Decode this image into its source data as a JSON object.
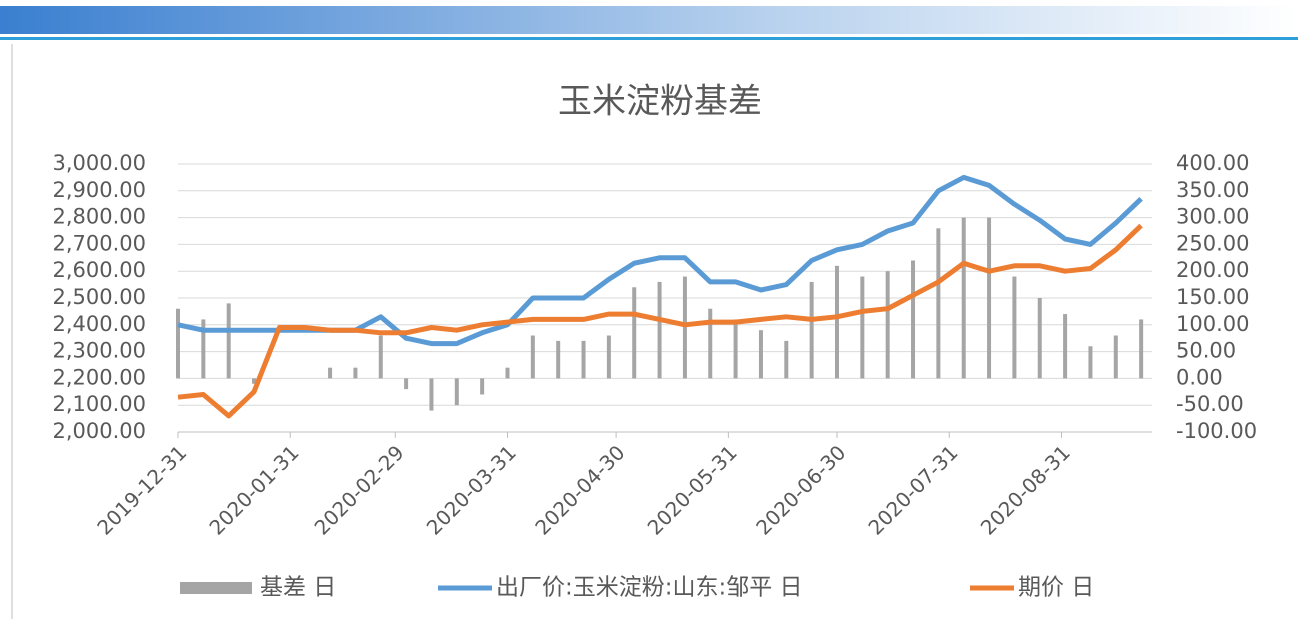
{
  "chart_data": {
    "type": "combo",
    "title": "玉米淀粉基差",
    "x": [
      "2019-12-31",
      "2020-01-07",
      "2020-01-14",
      "2020-01-21",
      "2020-01-28",
      "2020-02-04",
      "2020-02-11",
      "2020-02-18",
      "2020-02-25",
      "2020-03-03",
      "2020-03-10",
      "2020-03-17",
      "2020-03-24",
      "2020-03-31",
      "2020-04-07",
      "2020-04-14",
      "2020-04-21",
      "2020-04-28",
      "2020-05-05",
      "2020-05-12",
      "2020-05-19",
      "2020-05-26",
      "2020-06-02",
      "2020-06-09",
      "2020-06-16",
      "2020-06-23",
      "2020-06-30",
      "2020-07-07",
      "2020-07-14",
      "2020-07-21",
      "2020-07-28",
      "2020-08-04",
      "2020-08-11",
      "2020-08-18",
      "2020-08-25",
      "2020-09-01",
      "2020-09-08",
      "2020-09-15",
      "2020-09-22"
    ],
    "xlim": [
      "2019-12-31",
      "2020-09-25"
    ],
    "xticks": [
      "2019-12-31",
      "2020-01-31",
      "2020-02-29",
      "2020-03-31",
      "2020-04-30",
      "2020-05-31",
      "2020-06-30",
      "2020-07-31",
      "2020-08-31"
    ],
    "series": [
      {
        "name": "基差 日",
        "type": "bar",
        "axis": "y2",
        "color": "#a5a5a5",
        "values": [
          130,
          110,
          140,
          -10,
          0,
          0,
          20,
          20,
          80,
          -20,
          -60,
          -50,
          -30,
          20,
          80,
          70,
          70,
          80,
          170,
          180,
          190,
          130,
          110,
          90,
          70,
          180,
          210,
          190,
          200,
          220,
          280,
          300,
          300,
          190,
          150,
          120,
          60,
          80,
          110
        ]
      },
      {
        "name": "出厂价:玉米淀粉:山东:邹平 日",
        "type": "line",
        "color": "#5b9bd5",
        "values": [
          2400,
          2380,
          2380,
          2380,
          2380,
          2380,
          2380,
          2380,
          2430,
          2350,
          2330,
          2330,
          2370,
          2400,
          2500,
          2500,
          2500,
          2570,
          2630,
          2650,
          2650,
          2560,
          2560,
          2530,
          2550,
          2640,
          2680,
          2700,
          2750,
          2780,
          2900,
          2950,
          2920,
          2850,
          2790,
          2720,
          2700,
          2780,
          2870
        ]
      },
      {
        "name": "期价 日",
        "type": "line",
        "color": "#ed7d31",
        "values": [
          2130,
          2140,
          2060,
          2150,
          2390,
          2390,
          2380,
          2380,
          2370,
          2370,
          2390,
          2380,
          2400,
          2410,
          2420,
          2420,
          2420,
          2440,
          2440,
          2420,
          2400,
          2410,
          2410,
          2420,
          2430,
          2420,
          2430,
          2450,
          2460,
          2510,
          2560,
          2630,
          2600,
          2620,
          2620,
          2600,
          2610,
          2680,
          2770
        ]
      }
    ],
    "ylim": [
      2000,
      3000
    ],
    "yticks": [
      {
        "value": 2000,
        "label": "2,000.00"
      },
      {
        "value": 2100,
        "label": "2,100.00"
      },
      {
        "value": 2200,
        "label": "2,200.00"
      },
      {
        "value": 2300,
        "label": "2,300.00"
      },
      {
        "value": 2400,
        "label": "2,400.00"
      },
      {
        "value": 2500,
        "label": "2,500.00"
      },
      {
        "value": 2600,
        "label": "2,600.00"
      },
      {
        "value": 2700,
        "label": "2,700.00"
      },
      {
        "value": 2800,
        "label": "2,800.00"
      },
      {
        "value": 2900,
        "label": "2,900.00"
      },
      {
        "value": 3000,
        "label": "3,000.00"
      }
    ],
    "y2lim": [
      -100,
      400
    ],
    "y2ticks": [
      {
        "value": -100,
        "label": "-100.00"
      },
      {
        "value": -50,
        "label": "-50.00"
      },
      {
        "value": 0,
        "label": "0.00"
      },
      {
        "value": 50,
        "label": "50.00"
      },
      {
        "value": 100,
        "label": "100.00"
      },
      {
        "value": 150,
        "label": "150.00"
      },
      {
        "value": 200,
        "label": "200.00"
      },
      {
        "value": 250,
        "label": "250.00"
      },
      {
        "value": 300,
        "label": "300.00"
      },
      {
        "value": 350,
        "label": "350.00"
      },
      {
        "value": 400,
        "label": "400.00"
      }
    ],
    "grid": true,
    "legend": "bottom"
  }
}
